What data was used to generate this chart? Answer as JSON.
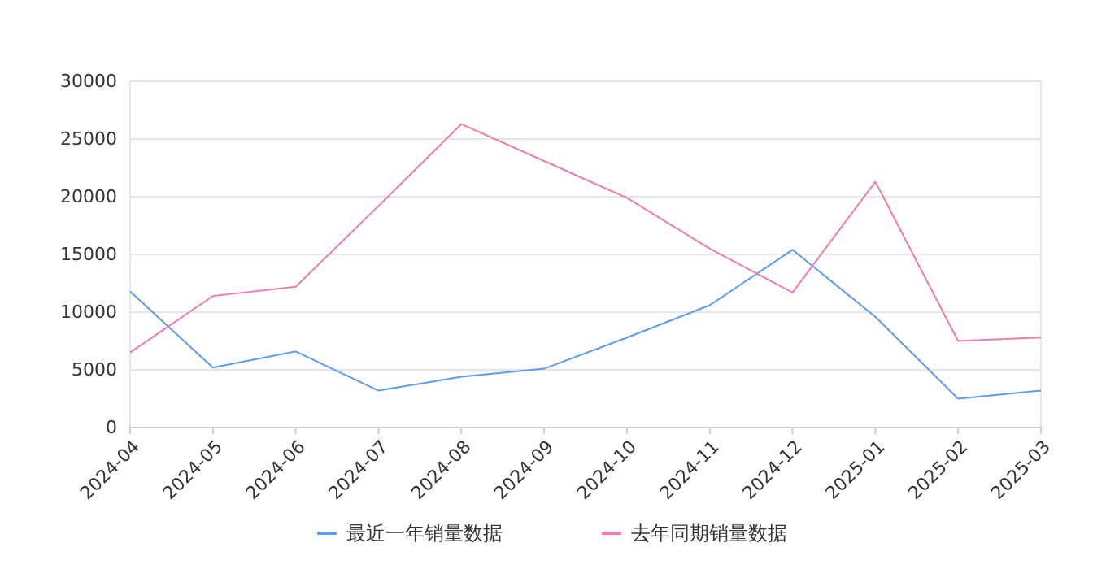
{
  "chart_data": {
    "type": "line",
    "categories": [
      "2024-04",
      "2024-05",
      "2024-06",
      "2024-07",
      "2024-08",
      "2024-09",
      "2024-10",
      "2024-11",
      "2024-12",
      "2025-01",
      "2025-02",
      "2025-03"
    ],
    "series": [
      {
        "name": "最近一年销量数据",
        "color": "#5b9bf0",
        "values": [
          11800,
          5200,
          6600,
          3200,
          4400,
          5100,
          7800,
          10600,
          15400,
          9600,
          2500,
          3200
        ]
      },
      {
        "name": "去年同期销量数据",
        "color": "#f07ab0",
        "values": [
          6500,
          11400,
          12200,
          19200,
          26300,
          23100,
          19900,
          15500,
          11700,
          21300,
          7500,
          7800
        ]
      }
    ],
    "ylim": [
      0,
      30000
    ],
    "yticks": [
      0,
      5000,
      10000,
      15000,
      20000,
      25000,
      30000
    ],
    "grid": "y",
    "legend": "bottom",
    "marker": "none"
  }
}
